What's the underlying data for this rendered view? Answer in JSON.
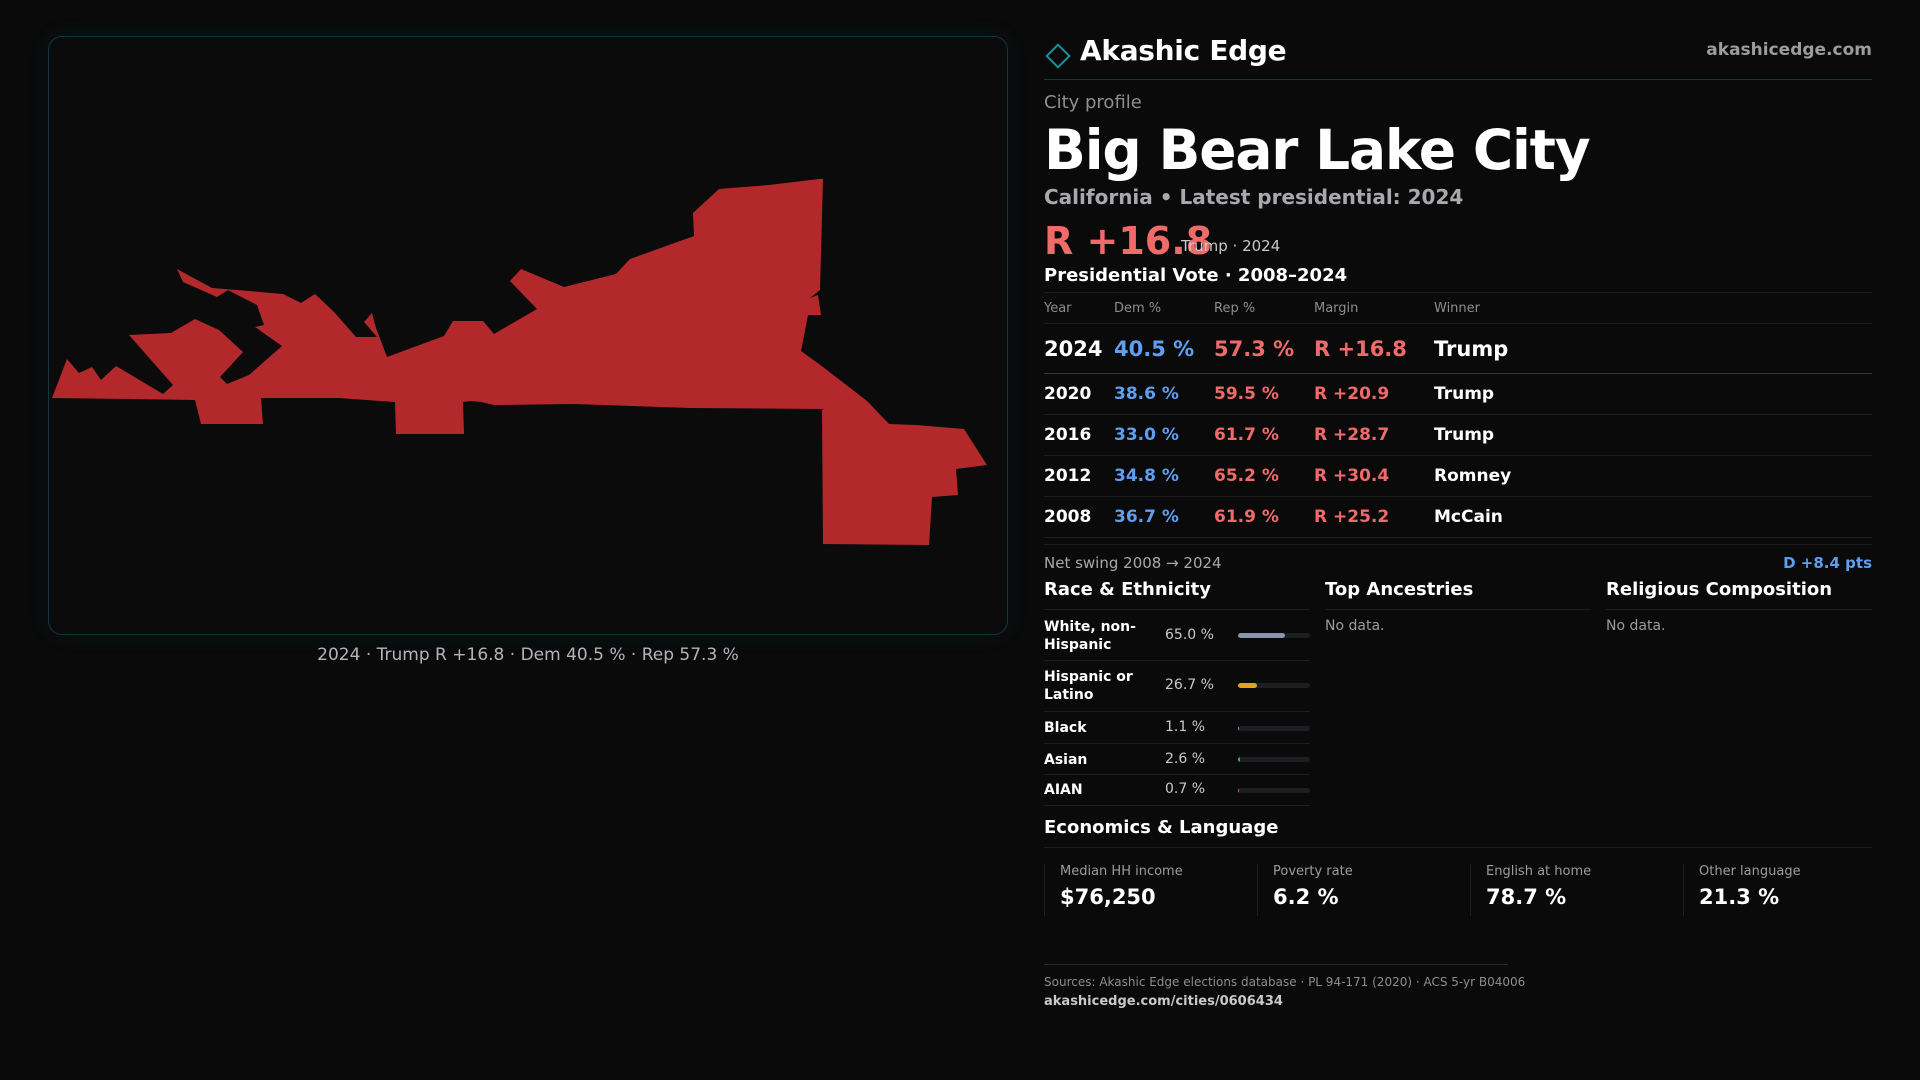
{
  "map": {
    "shape_color": "#b3292b",
    "caption": "2024 · Trump R +16.8 · Dem 40.5 % · Rep 57.3 %"
  },
  "header": {
    "brand": "Akashic Edge",
    "site": "akashicedge.com",
    "logo_icon": "diamond-outline-icon",
    "accent": "#1a8f98"
  },
  "profile": {
    "eyebrow": "City profile",
    "city": "Big Bear Lake City",
    "subtitle": "California • Latest presidential: 2024",
    "headline_margin": "R +16.8",
    "headline_winner": "Trump · 2024"
  },
  "vote": {
    "title": "Presidential Vote · 2008–2024",
    "columns": [
      "Year",
      "Dem %",
      "Rep %",
      "Margin",
      "Winner"
    ],
    "rows": [
      {
        "year": "2024",
        "dem": "40.5 %",
        "rep": "57.3 %",
        "margin": "R +16.8",
        "winner": "Trump"
      },
      {
        "year": "2020",
        "dem": "38.6 %",
        "rep": "59.5 %",
        "margin": "R +20.9",
        "winner": "Trump"
      },
      {
        "year": "2016",
        "dem": "33.0 %",
        "rep": "61.7 %",
        "margin": "R +28.7",
        "winner": "Trump"
      },
      {
        "year": "2012",
        "dem": "34.8 %",
        "rep": "65.2 %",
        "margin": "R +30.4",
        "winner": "Romney"
      },
      {
        "year": "2008",
        "dem": "36.7 %",
        "rep": "61.9 %",
        "margin": "R +25.2",
        "winner": "McCain"
      }
    ],
    "dem_color": "#5f9ff1",
    "rep_color": "#f06a6a"
  },
  "swing": {
    "label": "Net swing 2008 → 2024",
    "value": "D +8.4 pts"
  },
  "race": {
    "title": "Race & Ethnicity",
    "items": [
      {
        "label": "White, non-Hispanic",
        "value": "65.0 %",
        "fraction": 0.65,
        "color": "#8a95aa"
      },
      {
        "label": "Hispanic or Latino",
        "value": "26.7 %",
        "fraction": 0.267,
        "color": "#e3a21f"
      },
      {
        "label": "Black",
        "value": "1.1 %",
        "fraction": 0.011,
        "color": "#a48bd8"
      },
      {
        "label": "Asian",
        "value": "2.6 %",
        "fraction": 0.026,
        "color": "#2fb59a"
      },
      {
        "label": "AIAN",
        "value": "0.7 %",
        "fraction": 0.007,
        "color": "#d9783a"
      }
    ]
  },
  "ancestries": {
    "title": "Top Ancestries",
    "empty": "No data."
  },
  "religion": {
    "title": "Religious Composition",
    "empty": "No data."
  },
  "economics": {
    "title": "Economics & Language",
    "cells": [
      {
        "label": "Median HH income",
        "value": "$76,250"
      },
      {
        "label": "Poverty rate",
        "value": "6.2 %"
      },
      {
        "label": "English at home",
        "value": "78.7 %"
      },
      {
        "label": "Other language",
        "value": "21.3 %"
      }
    ]
  },
  "sources": {
    "text": "Sources: Akashic Edge elections database · PL 94-171 (2020) · ACS 5-yr B04006",
    "url": "akashicedge.com/cities/0606434"
  }
}
